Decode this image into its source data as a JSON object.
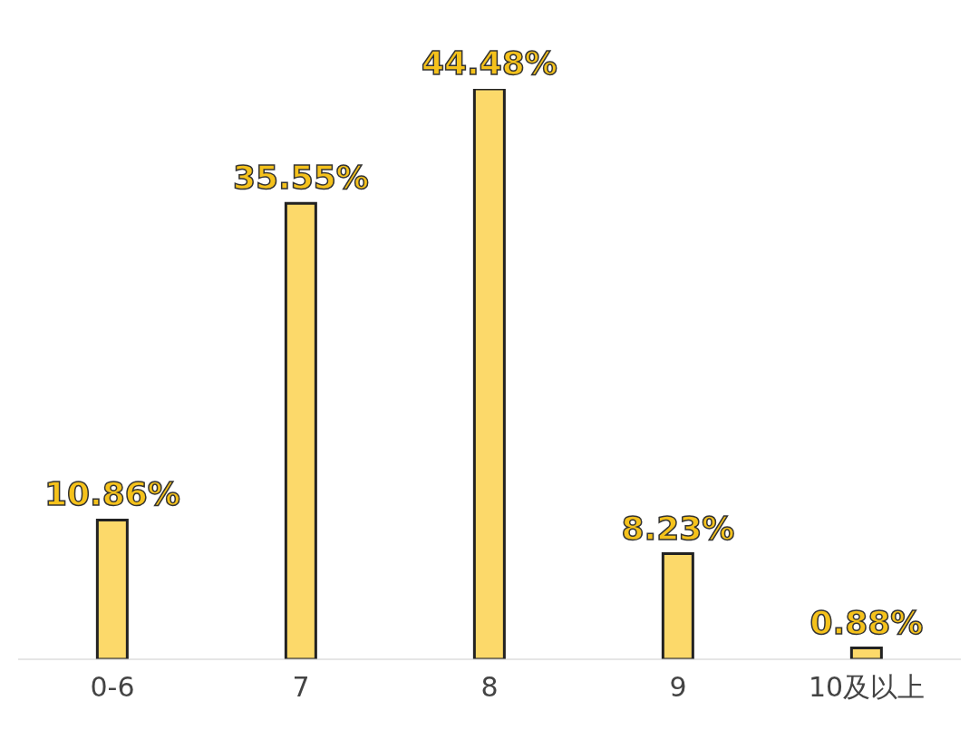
{
  "chart_data": {
    "type": "bar",
    "categories": [
      "0-6",
      "7",
      "8",
      "9",
      "10及以上"
    ],
    "values": [
      10.86,
      35.55,
      44.48,
      8.23,
      0.88
    ],
    "value_labels": [
      "10.86%",
      "35.55%",
      "44.48%",
      "8.23%",
      "0.88%"
    ],
    "color": "#fcd96a",
    "grid": false,
    "legend": false
  }
}
